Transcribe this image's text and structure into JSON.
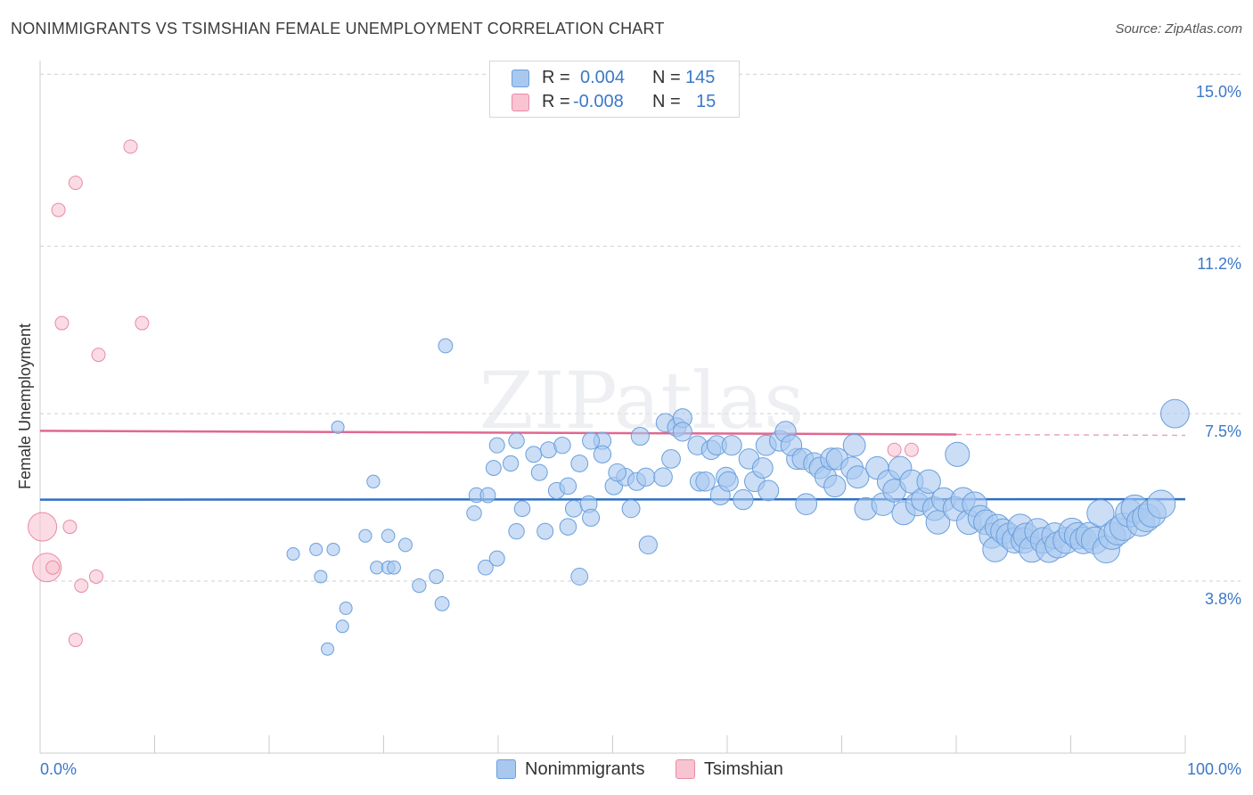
{
  "title": "NONIMMIGRANTS VS TSIMSHIAN FEMALE UNEMPLOYMENT CORRELATION CHART",
  "source": "Source: ZipAtlas.com",
  "watermark": "ZIPatlas",
  "colors": {
    "blue_fill": "#a8c8f0",
    "blue_stroke": "#6a9fdc",
    "blue_line": "#2f6fc4",
    "pink_fill": "#f8c4d2",
    "pink_stroke": "#e88aa6",
    "pink_line": "#e06890",
    "tick_label": "#3b78c8",
    "grid": "#cfcfcf"
  },
  "legend": {
    "rows": [
      {
        "r_label": "R =",
        "r_value": "0.004",
        "n_label": "N =",
        "n_value": "145"
      },
      {
        "r_label": "R =",
        "r_value": "-0.008",
        "n_label": "N =",
        "n_value": "15"
      }
    ]
  },
  "bottom_legend": [
    "Nonimmigrants",
    "Tsimshian"
  ],
  "chart_data": {
    "type": "scatter",
    "title": "NONIMMIGRANTS VS TSIMSHIAN FEMALE UNEMPLOYMENT CORRELATION CHART",
    "xlabel": "",
    "ylabel": "Female Unemployment",
    "xlim": [
      0,
      100
    ],
    "ylim": [
      0,
      15.3
    ],
    "x_tick_labels": [
      "0.0%",
      "100.0%"
    ],
    "y_ticks": [
      {
        "value": 3.8,
        "label": "3.8%"
      },
      {
        "value": 7.5,
        "label": "7.5%"
      },
      {
        "value": 11.2,
        "label": "11.2%"
      },
      {
        "value": 15.0,
        "label": "15.0%"
      }
    ],
    "series": [
      {
        "name": "Nonimmigrants",
        "trend": {
          "x": [
            0,
            100
          ],
          "y": [
            5.6,
            5.61
          ]
        },
        "points": [
          [
            22.1,
            4.4
          ],
          [
            24.1,
            4.5
          ],
          [
            25.6,
            4.5
          ],
          [
            24.5,
            3.9
          ],
          [
            26.4,
            2.8
          ],
          [
            26.7,
            3.2
          ],
          [
            25.1,
            2.3
          ],
          [
            26.0,
            7.2
          ],
          [
            29.1,
            6.0
          ],
          [
            28.4,
            4.8
          ],
          [
            29.4,
            4.1
          ],
          [
            30.4,
            4.1
          ],
          [
            30.9,
            4.1
          ],
          [
            30.4,
            4.8
          ],
          [
            31.9,
            4.6
          ],
          [
            33.1,
            3.7
          ],
          [
            35.1,
            3.3
          ],
          [
            34.6,
            3.9
          ],
          [
            35.4,
            9.0
          ],
          [
            37.9,
            5.3
          ],
          [
            38.1,
            5.7
          ],
          [
            39.1,
            5.7
          ],
          [
            38.9,
            4.1
          ],
          [
            39.9,
            4.3
          ],
          [
            39.6,
            6.3
          ],
          [
            39.9,
            6.8
          ],
          [
            41.1,
            6.4
          ],
          [
            41.6,
            6.9
          ],
          [
            42.1,
            5.4
          ],
          [
            41.6,
            4.9
          ],
          [
            43.1,
            6.6
          ],
          [
            43.6,
            6.2
          ],
          [
            44.4,
            6.7
          ],
          [
            44.1,
            4.9
          ],
          [
            45.1,
            5.8
          ],
          [
            45.6,
            6.8
          ],
          [
            46.1,
            5.9
          ],
          [
            46.1,
            5.0
          ],
          [
            47.1,
            6.4
          ],
          [
            46.6,
            5.4
          ],
          [
            47.9,
            5.5
          ],
          [
            48.1,
            5.2
          ],
          [
            47.1,
            3.9
          ],
          [
            49.1,
            6.9
          ],
          [
            48.1,
            6.9
          ],
          [
            50.1,
            5.9
          ],
          [
            49.1,
            6.6
          ],
          [
            51.1,
            6.1
          ],
          [
            50.4,
            6.2
          ],
          [
            51.6,
            5.4
          ],
          [
            52.1,
            6.0
          ],
          [
            52.9,
            6.1
          ],
          [
            52.4,
            7.0
          ],
          [
            53.1,
            4.6
          ],
          [
            54.6,
            7.3
          ],
          [
            55.6,
            7.2
          ],
          [
            55.1,
            6.5
          ],
          [
            54.4,
            6.1
          ],
          [
            56.1,
            7.4
          ],
          [
            56.1,
            7.1
          ],
          [
            57.4,
            6.8
          ],
          [
            57.6,
            6.0
          ],
          [
            58.6,
            6.7
          ],
          [
            58.1,
            6.0
          ],
          [
            59.4,
            5.7
          ],
          [
            59.1,
            6.8
          ],
          [
            60.4,
            6.8
          ],
          [
            59.9,
            6.1
          ],
          [
            60.1,
            6.0
          ],
          [
            61.4,
            5.6
          ],
          [
            61.9,
            6.5
          ],
          [
            62.4,
            6.0
          ],
          [
            63.1,
            6.3
          ],
          [
            63.4,
            6.8
          ],
          [
            63.6,
            5.8
          ],
          [
            64.6,
            6.9
          ],
          [
            65.1,
            7.1
          ],
          [
            66.1,
            6.5
          ],
          [
            65.6,
            6.8
          ],
          [
            66.6,
            6.5
          ],
          [
            66.9,
            5.5
          ],
          [
            67.6,
            6.4
          ],
          [
            68.1,
            6.3
          ],
          [
            68.6,
            6.1
          ],
          [
            69.1,
            6.5
          ],
          [
            69.6,
            6.5
          ],
          [
            69.4,
            5.9
          ],
          [
            70.9,
            6.3
          ],
          [
            71.1,
            6.8
          ],
          [
            71.4,
            6.1
          ],
          [
            72.1,
            5.4
          ],
          [
            73.1,
            6.3
          ],
          [
            73.6,
            5.5
          ],
          [
            74.1,
            6.0
          ],
          [
            74.6,
            5.8
          ],
          [
            75.1,
            6.3
          ],
          [
            75.4,
            5.3
          ],
          [
            76.1,
            6.0
          ],
          [
            76.6,
            5.5
          ],
          [
            77.1,
            5.6
          ],
          [
            77.6,
            6.0
          ],
          [
            78.1,
            5.4
          ],
          [
            78.4,
            5.1
          ],
          [
            78.9,
            5.6
          ],
          [
            79.9,
            5.4
          ],
          [
            80.1,
            6.6
          ],
          [
            80.6,
            5.6
          ],
          [
            81.1,
            5.1
          ],
          [
            81.6,
            5.5
          ],
          [
            82.1,
            5.2
          ],
          [
            82.6,
            5.1
          ],
          [
            83.1,
            4.8
          ],
          [
            83.4,
            4.5
          ],
          [
            83.6,
            5.0
          ],
          [
            84.1,
            4.9
          ],
          [
            84.6,
            4.8
          ],
          [
            85.1,
            4.7
          ],
          [
            85.6,
            5.0
          ],
          [
            85.9,
            4.7
          ],
          [
            86.1,
            4.8
          ],
          [
            86.6,
            4.5
          ],
          [
            87.1,
            4.9
          ],
          [
            87.6,
            4.7
          ],
          [
            88.1,
            4.5
          ],
          [
            88.6,
            4.8
          ],
          [
            88.9,
            4.6
          ],
          [
            89.6,
            4.7
          ],
          [
            90.1,
            4.9
          ],
          [
            90.6,
            4.8
          ],
          [
            91.1,
            4.7
          ],
          [
            91.6,
            4.8
          ],
          [
            92.1,
            4.7
          ],
          [
            92.6,
            5.3
          ],
          [
            93.1,
            4.5
          ],
          [
            93.6,
            4.8
          ],
          [
            94.1,
            4.9
          ],
          [
            94.6,
            5.0
          ],
          [
            95.1,
            5.3
          ],
          [
            95.6,
            5.4
          ],
          [
            96.1,
            5.1
          ],
          [
            96.6,
            5.2
          ],
          [
            97.1,
            5.3
          ],
          [
            97.9,
            5.5
          ],
          [
            99.1,
            7.5
          ]
        ]
      },
      {
        "name": "Tsimshian",
        "trend": {
          "x": [
            0,
            80
          ],
          "y": [
            7.12,
            7.04
          ]
        },
        "trend_dashed": {
          "x": [
            80,
            100
          ],
          "y": [
            7.04,
            7.02
          ]
        },
        "points": [
          [
            0.2,
            5.0
          ],
          [
            0.6,
            4.1
          ],
          [
            1.1,
            4.1
          ],
          [
            1.6,
            12.0
          ],
          [
            1.9,
            9.5
          ],
          [
            2.6,
            5.0
          ],
          [
            3.1,
            2.5
          ],
          [
            3.1,
            12.6
          ],
          [
            3.6,
            3.7
          ],
          [
            4.9,
            3.9
          ],
          [
            5.1,
            8.8
          ],
          [
            7.9,
            13.4
          ],
          [
            8.9,
            9.5
          ],
          [
            74.6,
            6.7
          ],
          [
            76.1,
            6.7
          ]
        ]
      }
    ]
  }
}
